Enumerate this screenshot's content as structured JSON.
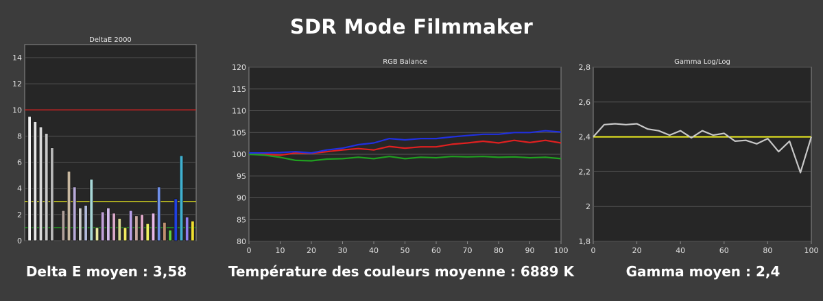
{
  "title": "SDR Mode Filmmaker",
  "captions": {
    "deltae": "Delta E moyen : 3,58",
    "temperature": "Température des couleurs moyenne : 6889 K",
    "gamma": "Gamma moyen : 2,4"
  },
  "chart_data": [
    {
      "type": "bar",
      "title": "DeltaE 2000",
      "ylim": [
        0,
        15
      ],
      "yticks": [
        "0",
        "2",
        "4",
        "6",
        "8",
        "10",
        "12",
        "14"
      ],
      "reference_lines": [
        {
          "value": 10,
          "color": "#e02020"
        },
        {
          "value": 3,
          "color": "#d8d820"
        },
        {
          "value": 1,
          "color": "#20a020"
        }
      ],
      "values": [
        9.5,
        9.1,
        8.7,
        8.2,
        7.1,
        0,
        2.3,
        5.3,
        4.1,
        2.5,
        2.7,
        4.7,
        1.0,
        2.2,
        2.5,
        2.1,
        1.7,
        1.0,
        2.3,
        1.9,
        2.0,
        1.3,
        2.1,
        4.1,
        1.4,
        0.8,
        3.2,
        6.5,
        1.8,
        1.5
      ],
      "colors": [
        "#f4f4f4",
        "#e6e6e6",
        "#d8d8d8",
        "#c8c8c8",
        "#b8b8b8",
        "#3c3c3c",
        "#b0a09a",
        "#c8b8a0",
        "#b8aad8",
        "#cccccc",
        "#b0b8d8",
        "#a8d8d8",
        "#e8e8a0",
        "#c0a0d8",
        "#d0b8e8",
        "#d8a8c8",
        "#d8d890",
        "#f0e860",
        "#b8a0e8",
        "#c8a8a0",
        "#e0a8c8",
        "#f0f060",
        "#e8b8e8",
        "#7090e8",
        "#c09070",
        "#60d040",
        "#2040e0",
        "#40b0d0",
        "#9080f0",
        "#f0e030"
      ]
    },
    {
      "type": "line",
      "title": "RGB Balance",
      "xlim": [
        0,
        100
      ],
      "ylim": [
        80,
        120
      ],
      "xticks": [
        "0",
        "10",
        "20",
        "30",
        "40",
        "50",
        "60",
        "70",
        "80",
        "90",
        "100"
      ],
      "yticks": [
        "80",
        "85",
        "90",
        "95",
        "100",
        "105",
        "110",
        "115",
        "120"
      ],
      "x": [
        0,
        5,
        10,
        15,
        20,
        25,
        30,
        35,
        40,
        45,
        50,
        55,
        60,
        65,
        70,
        75,
        80,
        85,
        90,
        95,
        100
      ],
      "series": [
        {
          "color": "#e02020",
          "values": [
            100,
            100,
            99.8,
            100.3,
            100.2,
            100.6,
            101.0,
            101.3,
            101.0,
            101.8,
            101.4,
            101.7,
            101.7,
            102.3,
            102.6,
            103.0,
            102.6,
            103.2,
            102.7,
            103.2,
            102.6
          ]
        },
        {
          "color": "#20a020",
          "values": [
            100,
            99.8,
            99.3,
            98.6,
            98.5,
            98.9,
            99.0,
            99.3,
            99.0,
            99.5,
            99.0,
            99.3,
            99.2,
            99.5,
            99.4,
            99.5,
            99.3,
            99.4,
            99.2,
            99.3,
            99.0
          ]
        },
        {
          "color": "#2030e0",
          "values": [
            100.3,
            100.3,
            100.4,
            100.6,
            100.3,
            101.0,
            101.4,
            102.2,
            102.6,
            103.6,
            103.3,
            103.6,
            103.6,
            104.0,
            104.3,
            104.6,
            104.6,
            105.0,
            105.0,
            105.4,
            105.1
          ]
        }
      ]
    },
    {
      "type": "line",
      "title": "Gamma Log/Log",
      "xlim": [
        0,
        100
      ],
      "ylim": [
        1.8,
        2.8
      ],
      "xticks": [
        "0",
        "20",
        "40",
        "60",
        "80",
        "100"
      ],
      "yticks": [
        "1,8",
        "2",
        "2,2",
        "2,4",
        "2,6",
        "2,8"
      ],
      "reference_lines": [
        {
          "value": 2.4,
          "color": "#f0f020"
        }
      ],
      "x": [
        0,
        5,
        10,
        15,
        20,
        25,
        30,
        35,
        40,
        45,
        50,
        55,
        60,
        65,
        70,
        75,
        80,
        85,
        90,
        95,
        100
      ],
      "series": [
        {
          "color": "#c8c8c8",
          "values": [
            2.4,
            2.47,
            2.475,
            2.47,
            2.475,
            2.445,
            2.435,
            2.41,
            2.435,
            2.395,
            2.435,
            2.41,
            2.42,
            2.375,
            2.38,
            2.36,
            2.39,
            2.315,
            2.375,
            2.195,
            2.4
          ]
        }
      ]
    }
  ]
}
